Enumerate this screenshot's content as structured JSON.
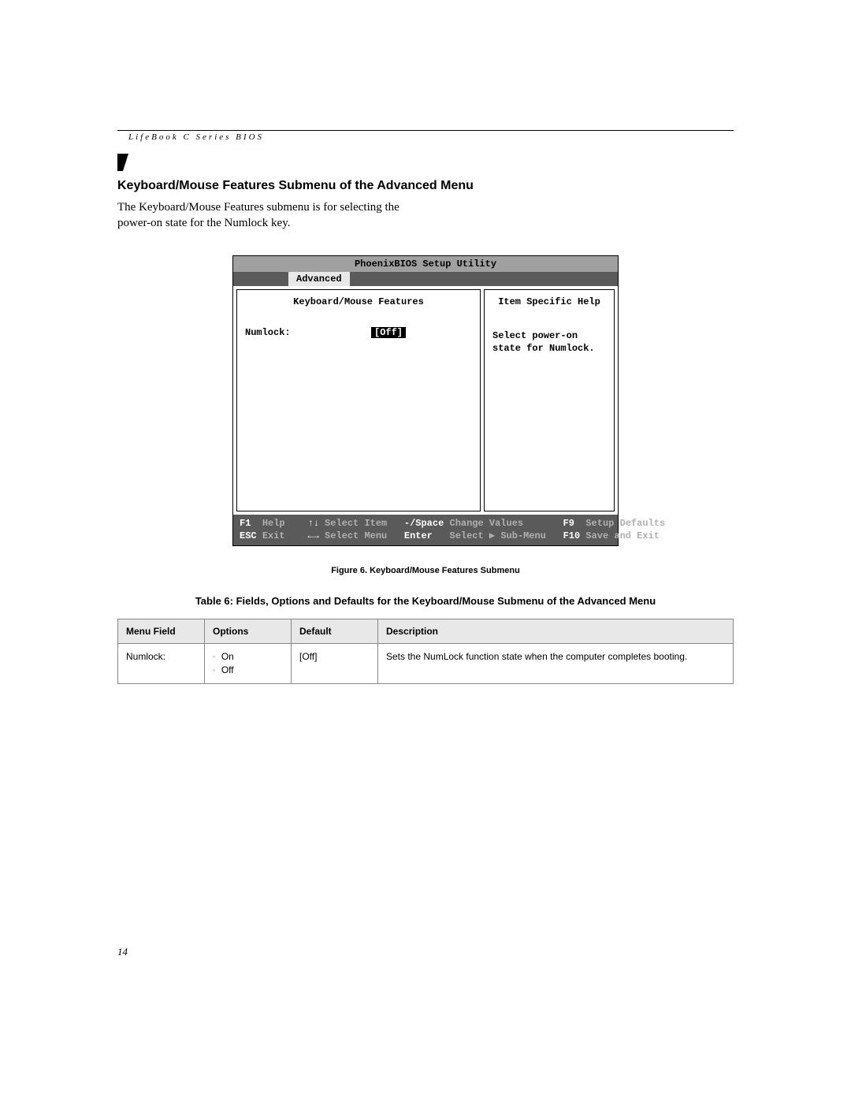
{
  "doc_header": "LifeBook C Series BIOS",
  "section_title": "Keyboard/Mouse Features Submenu of the Advanced Menu",
  "section_desc": "The Keyboard/Mouse Features submenu is for selecting the power-on state for the Numlock key.",
  "bios": {
    "title": "PhoenixBIOS Setup Utility",
    "active_tab": "Advanced",
    "panel_title": "Keyboard/Mouse Features",
    "field_label": "Numlock:",
    "field_value": "[Off]",
    "help_title": "Item Specific Help",
    "help_text": "Select power-on state for Numlock.",
    "footer": {
      "f1": "F1",
      "help": "Help",
      "arrows_ud": "↑↓",
      "select_item": "Select Item",
      "minus_space": "-/Space",
      "change_values": "Change Values",
      "f9": "F9",
      "setup_defaults": "Setup Defaults",
      "esc": "ESC",
      "exit": "Exit",
      "arrows_lr": "←→",
      "select_menu": "Select Menu",
      "enter": "Enter",
      "select_submenu": "Select ▶ Sub-Menu",
      "f10": "F10",
      "save_exit": "Save and Exit"
    }
  },
  "figure_caption": "Figure 6.  Keyboard/Mouse Features Submenu",
  "table_caption": "Table 6: Fields, Options and Defaults for the Keyboard/Mouse Submenu of the Advanced Menu",
  "table": {
    "headers": {
      "menu_field": "Menu Field",
      "options": "Options",
      "default": "Default",
      "description": "Description"
    },
    "row": {
      "menu_field": "Numlock:",
      "option1": "On",
      "option2": "Off",
      "default": "[Off]",
      "description": "Sets the NumLock function state when the computer completes booting."
    }
  },
  "page_number": "14",
  "colors": {
    "page_bg": "#ffffff",
    "bios_titlebar": "#a0a0a0",
    "bios_menubar": "#5a5a5a",
    "bios_tab_bg": "#e8e8e8",
    "bios_footer_bg": "#5a5a5a",
    "table_header_bg": "#e8e8e8",
    "table_border": "#888888"
  }
}
